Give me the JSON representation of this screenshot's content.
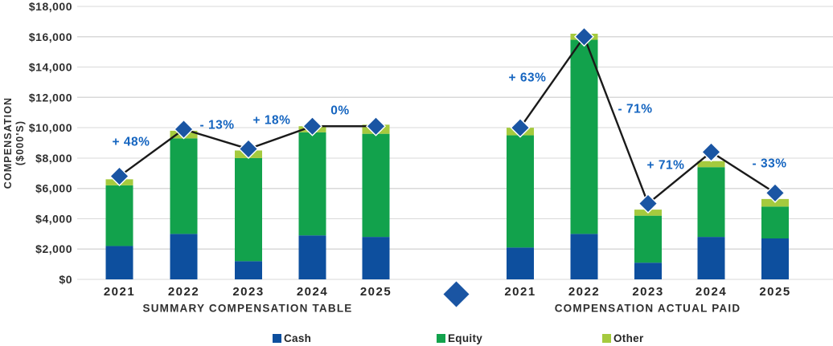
{
  "chart_data": {
    "type": "bar",
    "subtype": "stacked",
    "overlay": "line-with-diamond-markers",
    "grid": true,
    "legend_position": "bottom",
    "y_axis": {
      "title_line1": "COMPENSATION",
      "title_line2": "($000'S)",
      "min": 0,
      "max": 18000,
      "step": 2000,
      "tick_values": [
        18000,
        16000,
        14000,
        12000,
        10000,
        8000,
        6000,
        4000,
        2000,
        0
      ],
      "tick_labels": [
        "$18,000",
        "$16,000",
        "$14,000",
        "$12,000",
        "$10,000",
        "$8,000",
        "$6,000",
        "$4,000",
        "$2,000",
        "$0"
      ]
    },
    "categories": [
      "2021",
      "2022",
      "2023",
      "2024",
      "2025"
    ],
    "groups": [
      {
        "name": "SUMMARY COMPENSATION TABLE",
        "series": [
          {
            "name": "Cash",
            "color": "#0d4f9e",
            "values": [
              2200,
              3000,
              1200,
              2900,
              2800
            ]
          },
          {
            "name": "Equity",
            "color": "#12a24c",
            "values": [
              4000,
              6300,
              6800,
              6800,
              6800
            ]
          },
          {
            "name": "Other",
            "color": "#a5ca3e",
            "values": [
              400,
              500,
              500,
              400,
              600
            ]
          }
        ],
        "marker_values": [
          6800,
          9900,
          8600,
          10100,
          10100
        ],
        "change_labels": [
          "+ 48%",
          "- 13%",
          "+ 18%",
          "0%"
        ]
      },
      {
        "name": "COMPENSATION ACTUAL PAID",
        "series": [
          {
            "name": "Cash",
            "color": "#0d4f9e",
            "values": [
              2100,
              3000,
              1100,
              2800,
              2700
            ]
          },
          {
            "name": "Equity",
            "color": "#12a24c",
            "values": [
              7400,
              12800,
              3100,
              4600,
              2100
            ]
          },
          {
            "name": "Other",
            "color": "#a5ca3e",
            "values": [
              500,
              400,
              400,
              400,
              500
            ]
          }
        ],
        "marker_values": [
          10000,
          16000,
          5000,
          8400,
          5700
        ],
        "change_labels": [
          "+ 63%",
          "- 71%",
          "+ 71%",
          "- 33%"
        ]
      }
    ],
    "legend": [
      {
        "label": "Cash",
        "color": "#0d4f9e"
      },
      {
        "label": "Equity",
        "color": "#12a24c"
      },
      {
        "label": "Other",
        "color": "#a5ca3e"
      }
    ],
    "colors": {
      "marker": "#1a55a3",
      "marker_outline": "#ffffff",
      "line": "#1a1a1a",
      "grid": "#d9d9d9",
      "pct_label": "#1565c0",
      "axis_text": "#2f2f2f",
      "year_text": "#262626"
    }
  }
}
